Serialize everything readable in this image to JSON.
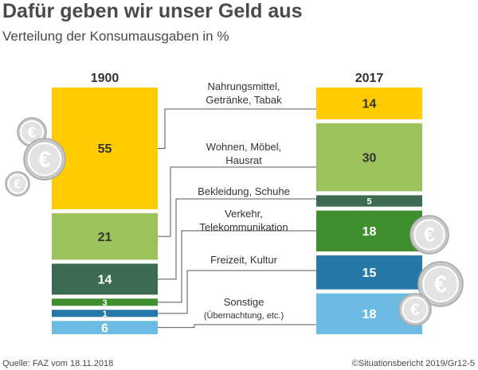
{
  "header": {
    "title": "Dafür geben wir unser Geld aus",
    "subtitle": "Verteilung der Konsumausgaben in %"
  },
  "footer": {
    "source": "Quelle: FAZ vom 18.11.2018",
    "copyright": "©Situationsbericht 2019/Gr12-5"
  },
  "chart_data": {
    "type": "bar",
    "title": "Dafür geben wir unser Geld aus",
    "subtitle": "Verteilung der Konsumausgaben in %",
    "unit": "%",
    "columns": [
      "1900",
      "2017"
    ],
    "categories": [
      {
        "label": [
          "Nahrungsmittel,",
          "Getränke, Tabak"
        ],
        "color": "#ffcc00",
        "text_color": "#333333",
        "values": [
          55,
          14
        ]
      },
      {
        "label": [
          "Wohnen, Möbel,",
          "Hausrat"
        ],
        "color": "#9cc25c",
        "text_color": "#333333",
        "values": [
          21,
          30
        ]
      },
      {
        "label": [
          "Bekleidung, Schuhe"
        ],
        "color": "#3d6b51",
        "text_color": "#ffffff",
        "values": [
          14,
          5
        ]
      },
      {
        "label": [
          "Verkehr,",
          "Telekommunikation"
        ],
        "color": "#3f8f2f",
        "text_color": "#ffffff",
        "values": [
          3,
          18
        ]
      },
      {
        "label": [
          "Freizeit, Kultur"
        ],
        "color": "#2678a8",
        "text_color": "#ffffff",
        "values": [
          1,
          15
        ]
      },
      {
        "label": [
          "Sonstige",
          "(Übernachtung, etc.)"
        ],
        "color": "#6cbbe3",
        "text_color": "#ffffff",
        "values": [
          6,
          18
        ]
      }
    ],
    "decorations": {
      "coin_icon": "euro-coin-icon",
      "coin_color": "#c8c8c8",
      "connector_color": "#555555"
    }
  }
}
